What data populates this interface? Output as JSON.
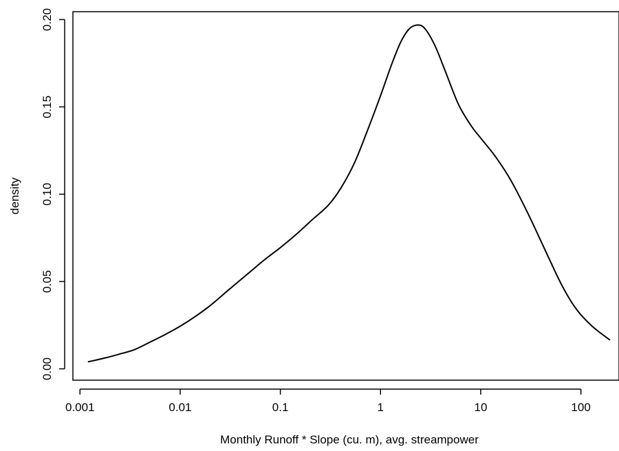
{
  "chart_data": {
    "type": "line",
    "xlabel": "Monthly Runoff * Slope (cu. m), avg. streampower",
    "ylabel": "density",
    "x_scale": "log10",
    "xlim": [
      0.00085,
      240
    ],
    "ylim": [
      -0.0065,
      0.2045
    ],
    "x_ticks": [
      0.001,
      0.01,
      0.1,
      1,
      10,
      100
    ],
    "x_tick_labels": [
      "0.001",
      "0.01",
      "0.1",
      "1",
      "10",
      "100"
    ],
    "y_ticks": [
      0.0,
      0.05,
      0.1,
      0.15,
      0.2
    ],
    "y_tick_labels": [
      "0.00",
      "0.05",
      "0.10",
      "0.15",
      "0.20"
    ],
    "grid": false,
    "series": [
      {
        "x": [
          0.0012,
          0.0018,
          0.0025,
          0.0035,
          0.005,
          0.007,
          0.01,
          0.014,
          0.02,
          0.03,
          0.05,
          0.07,
          0.1,
          0.15,
          0.2,
          0.3,
          0.4,
          0.55,
          0.75,
          1.0,
          1.3,
          1.6,
          1.9,
          2.2,
          2.6,
          3.0,
          3.6,
          4.5,
          6.0,
          8.0,
          10.0,
          14.0,
          20.0,
          30.0,
          45.0,
          65.0,
          90.0,
          130.0,
          195.0
        ],
        "y": [
          0.004,
          0.0063,
          0.0085,
          0.011,
          0.0153,
          0.0195,
          0.0244,
          0.0298,
          0.0363,
          0.0449,
          0.0556,
          0.0626,
          0.0694,
          0.0779,
          0.0845,
          0.0936,
          0.1033,
          0.118,
          0.1373,
          0.1564,
          0.1748,
          0.1874,
          0.1942,
          0.1966,
          0.1963,
          0.1921,
          0.1834,
          0.1694,
          0.1514,
          0.1393,
          0.1321,
          0.1216,
          0.1079,
          0.0883,
          0.0667,
          0.0475,
          0.0342,
          0.0243,
          0.0165
        ]
      }
    ]
  }
}
